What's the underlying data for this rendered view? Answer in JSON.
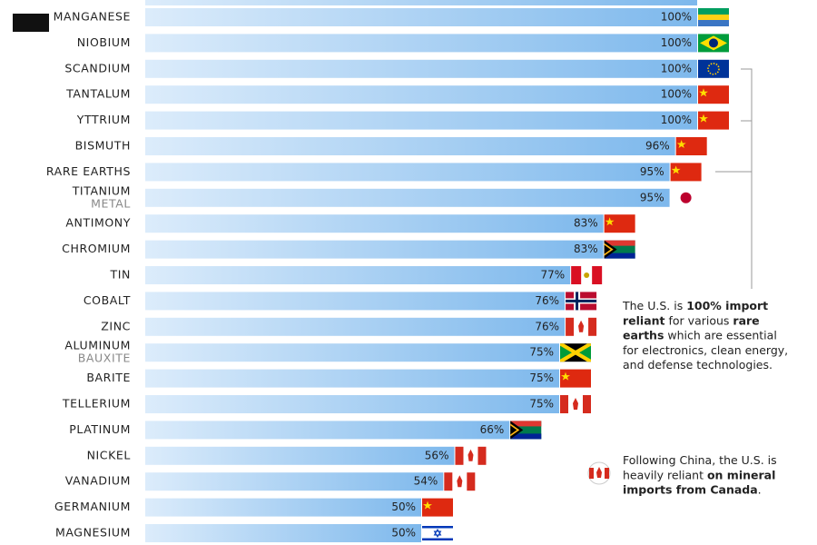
{
  "chart_data": {
    "type": "bar",
    "orientation": "horizontal",
    "categories": [
      "MANGANESE",
      "NIOBIUM",
      "SCANDIUM",
      "TANTALUM",
      "YTTRIUM",
      "BISMUTH",
      "RARE EARTHS",
      "TITANIUM",
      "ANTIMONY",
      "CHROMIUM",
      "TIN",
      "COBALT",
      "ZINC",
      "ALUMINUM",
      "BARITE",
      "TELLERIUM",
      "PLATINUM",
      "NICKEL",
      "VANADIUM",
      "GERMANIUM",
      "MAGNESIUM"
    ],
    "category_sublabels": [
      null,
      null,
      null,
      null,
      null,
      null,
      null,
      "METAL",
      null,
      null,
      null,
      null,
      null,
      "BAUXITE",
      null,
      null,
      null,
      null,
      null,
      null,
      null
    ],
    "values": [
      100,
      100,
      100,
      100,
      100,
      96,
      95,
      95,
      83,
      83,
      77,
      76,
      76,
      75,
      75,
      75,
      66,
      56,
      54,
      50,
      50
    ],
    "value_labels": [
      "100%",
      "100%",
      "100%",
      "100%",
      "100%",
      "96%",
      "95%",
      "95%",
      "83%",
      "83%",
      "77%",
      "76%",
      "76%",
      "75%",
      "75%",
      "75%",
      "66%",
      "56%",
      "54%",
      "50%",
      "50%"
    ],
    "color": "#7db8ec",
    "xlim": [
      0,
      100
    ],
    "annotations": [
      {
        "lines": [
          [
            {
              "text": "The U.S. is ",
              "bold": false
            },
            {
              "text": "100% import",
              "bold": true
            }
          ],
          [
            {
              "text": "reliant",
              "bold": true
            },
            {
              "text": " for various ",
              "bold": false
            },
            {
              "text": "rare",
              "bold": true
            }
          ],
          [
            {
              "text": "earths",
              "bold": true
            },
            {
              "text": " which are essential",
              "bold": false
            }
          ],
          [
            {
              "text": "for electronics, clean energy,",
              "bold": false
            }
          ],
          [
            {
              "text": "and defense technologies.",
              "bold": false
            }
          ]
        ]
      },
      {
        "lines": [
          [
            {
              "text": "Following China, the U.S. is",
              "bold": false
            }
          ],
          [
            {
              "text": "heavily reliant ",
              "bold": false
            },
            {
              "text": "on mineral",
              "bold": true
            }
          ],
          [
            {
              "text": "imports from Canada",
              "bold": true
            },
            {
              "text": ".",
              "bold": false
            }
          ]
        ]
      }
    ]
  }
}
